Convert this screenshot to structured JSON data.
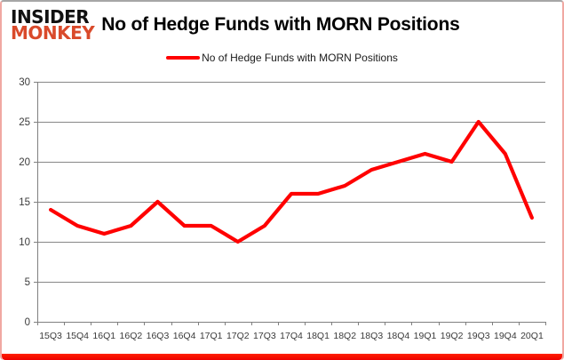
{
  "brand": {
    "line1": "INSIDER",
    "line2": "MONKEY"
  },
  "header": {
    "title": "No of Hedge Funds with MORN Positions"
  },
  "legend": {
    "label": "No of Hedge Funds with MORN Positions"
  },
  "chart_data": {
    "type": "line",
    "title": "No of Hedge Funds with MORN Positions",
    "categories": [
      "15Q3",
      "15Q4",
      "16Q1",
      "16Q2",
      "16Q3",
      "16Q4",
      "17Q1",
      "17Q2",
      "17Q3",
      "17Q4",
      "18Q1",
      "18Q2",
      "18Q3",
      "18Q4",
      "19Q1",
      "19Q2",
      "19Q3",
      "19Q4",
      "20Q1"
    ],
    "series": [
      {
        "name": "No of Hedge Funds with MORN Positions",
        "color": "#ff0000",
        "values": [
          14,
          12,
          11,
          12,
          15,
          12,
          12,
          10,
          12,
          16,
          16,
          17,
          19,
          20,
          21,
          20,
          25,
          21,
          13
        ]
      }
    ],
    "ylim": [
      0,
      30
    ],
    "yticks": [
      0,
      5,
      10,
      15,
      20,
      25,
      30
    ],
    "grid": true,
    "legend_position": "top-center"
  },
  "colors": {
    "line": "#ff0000",
    "grid": "#878787",
    "axis": "#808080",
    "axis_text": "#3a3a3a",
    "logo_monkey": "#d94a2b",
    "bottom_bar": "#ff0000"
  }
}
